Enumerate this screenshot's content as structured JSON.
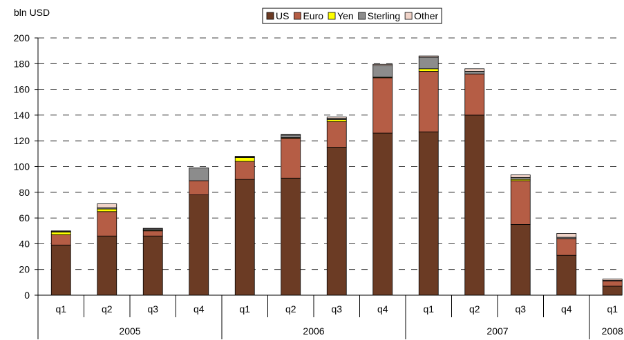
{
  "chart_data": {
    "type": "bar",
    "stacked": true,
    "ylabel": "bln USD",
    "ylim": [
      0,
      200
    ],
    "yticks": [
      0,
      20,
      40,
      60,
      80,
      100,
      120,
      140,
      160,
      180,
      200
    ],
    "grid": "dashed horizontal",
    "legend_position": "top",
    "categories": [
      "q1",
      "q2",
      "q3",
      "q4",
      "q1",
      "q2",
      "q3",
      "q4",
      "q1",
      "q2",
      "q3",
      "q4",
      "q1"
    ],
    "groups": [
      {
        "label": "2005",
        "count": 4
      },
      {
        "label": "2006",
        "count": 4
      },
      {
        "label": "2007",
        "count": 4
      },
      {
        "label": "2008",
        "count": 1
      }
    ],
    "series": [
      {
        "name": "US",
        "color": "#6b3b24",
        "values": [
          39,
          46,
          46,
          78,
          90,
          91,
          115,
          126,
          127,
          140,
          55,
          31,
          7
        ]
      },
      {
        "name": "Euro",
        "color": "#b55d45",
        "values": [
          8,
          19,
          4,
          11,
          14,
          31,
          20,
          43,
          47,
          32,
          34,
          13,
          4
        ]
      },
      {
        "name": "Yen",
        "color": "#ffff00",
        "values": [
          2,
          2,
          0.5,
          0,
          3,
          0.5,
          1.5,
          0.5,
          2,
          0,
          1,
          0,
          0
        ]
      },
      {
        "name": "Sterling",
        "color": "#8c8c8c",
        "values": [
          0.5,
          1,
          1,
          10,
          0.5,
          2,
          1,
          9,
          9,
          2,
          1.5,
          1,
          0.5
        ]
      },
      {
        "name": "Other",
        "color": "#f0d3c8",
        "values": [
          0.5,
          3,
          0.5,
          0,
          0.5,
          0.5,
          1,
          1,
          1,
          2,
          2,
          3,
          1
        ]
      }
    ]
  }
}
